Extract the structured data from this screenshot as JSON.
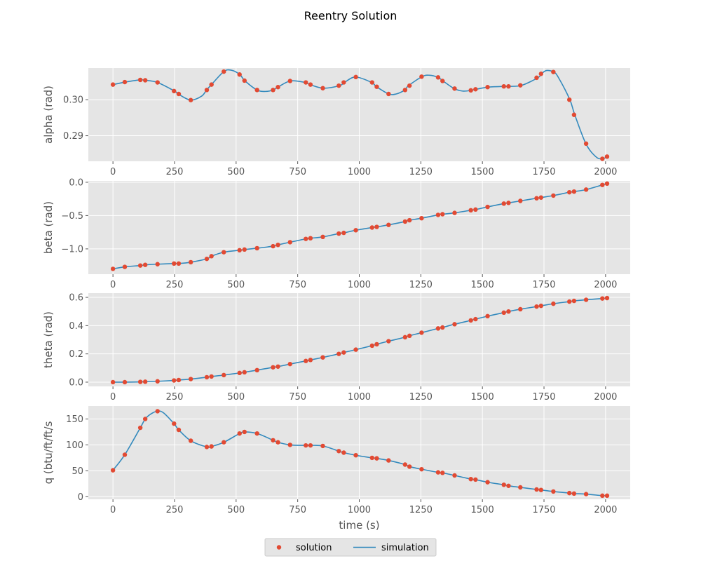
{
  "title": "Reentry Solution",
  "colors": {
    "solution": "#E24A33",
    "simulation": "#348ABD",
    "panel_bg": "#E5E5E5",
    "grid": "#FFFFFF"
  },
  "legend": {
    "placement": "lower-center",
    "entries": [
      "solution",
      "simulation"
    ]
  },
  "chart_data": [
    {
      "type": "line",
      "ylabel": "alpha (rad)",
      "xlabel": "",
      "grid": true,
      "xlim": [
        -100,
        2100
      ],
      "ylim": [
        0.2829,
        0.3088
      ],
      "xticks": [
        0,
        250,
        500,
        750,
        1000,
        1250,
        1500,
        1750,
        2000
      ],
      "xtick_labels": [
        "0",
        "250",
        "500",
        "750",
        "1000",
        "1250",
        "1500",
        "1750",
        "2000"
      ],
      "yticks": [
        0.29,
        0.3
      ],
      "ytick_labels": [
        "0.29",
        "0.30"
      ],
      "series": [
        {
          "name": "simulation",
          "style": "line",
          "x": [
            0,
            50,
            110,
            130,
            180,
            250,
            265,
            315,
            360,
            380,
            400,
            450,
            480,
            515,
            535,
            585,
            620,
            650,
            670,
            720,
            780,
            800,
            855,
            920,
            940,
            985,
            1050,
            1070,
            1120,
            1150,
            1185,
            1200,
            1255,
            1285,
            1320,
            1340,
            1385,
            1420,
            1455,
            1475,
            1525,
            1590,
            1610,
            1660,
            1725,
            1740,
            1760,
            1790,
            1810,
            1855,
            1875,
            1920,
            1960,
            1985,
            2010
          ],
          "y": [
            0.3042,
            0.3049,
            0.3055,
            0.3054,
            0.3048,
            0.3024,
            0.3016,
            0.2999,
            0.301,
            0.3027,
            0.3042,
            0.3078,
            0.3082,
            0.307,
            0.3053,
            0.3027,
            0.3023,
            0.3027,
            0.3035,
            0.3052,
            0.3048,
            0.3042,
            0.3032,
            0.3039,
            0.3048,
            0.3063,
            0.3048,
            0.3036,
            0.3016,
            0.3016,
            0.3027,
            0.3039,
            0.3064,
            0.3068,
            0.3062,
            0.3052,
            0.3031,
            0.3024,
            0.3026,
            0.3029,
            0.3035,
            0.3037,
            0.3037,
            0.304,
            0.3061,
            0.3072,
            0.3081,
            0.3077,
            0.306,
            0.3,
            0.2958,
            0.2878,
            0.2842,
            0.2836,
            0.2842
          ]
        },
        {
          "name": "solution",
          "style": "scatter",
          "x": [
            0,
            48,
            111,
            131,
            181,
            248,
            267,
            316,
            381,
            400,
            450,
            514,
            534,
            585,
            650,
            670,
            719,
            783,
            802,
            852,
            917,
            937,
            986,
            1052,
            1071,
            1119,
            1186,
            1204,
            1253,
            1320,
            1338,
            1387,
            1453,
            1472,
            1521,
            1587,
            1606,
            1654,
            1720,
            1738,
            1788,
            1853,
            1872,
            1921,
            1987,
            2006
          ],
          "y": [
            0.3042,
            0.3049,
            0.3055,
            0.3054,
            0.3048,
            0.3024,
            0.3016,
            0.2999,
            0.3027,
            0.3042,
            0.3078,
            0.307,
            0.3053,
            0.3027,
            0.3027,
            0.3035,
            0.3052,
            0.3048,
            0.3042,
            0.3032,
            0.3039,
            0.3048,
            0.3063,
            0.3048,
            0.3036,
            0.3016,
            0.3027,
            0.3039,
            0.3064,
            0.3062,
            0.3052,
            0.3031,
            0.3026,
            0.3029,
            0.3035,
            0.3037,
            0.3037,
            0.304,
            0.3061,
            0.3072,
            0.3077,
            0.3,
            0.2958,
            0.2878,
            0.2836,
            0.2842
          ]
        }
      ]
    },
    {
      "type": "line",
      "ylabel": "beta (rad)",
      "xlabel": "",
      "grid": true,
      "xlim": [
        -100,
        2100
      ],
      "ylim": [
        -1.38,
        0.02
      ],
      "xticks": [
        0,
        250,
        500,
        750,
        1000,
        1250,
        1500,
        1750,
        2000
      ],
      "xtick_labels": [
        "0",
        "250",
        "500",
        "750",
        "1000",
        "1250",
        "1500",
        "1750",
        "2000"
      ],
      "yticks": [
        -1.0,
        -0.5,
        0.0
      ],
      "ytick_labels": [
        "−1.0",
        "−0.5",
        "0.0"
      ],
      "series": [
        {
          "name": "simulation",
          "style": "line",
          "x": [
            0,
            48,
            111,
            131,
            181,
            248,
            267,
            316,
            381,
            400,
            450,
            514,
            534,
            585,
            650,
            670,
            719,
            783,
            802,
            852,
            917,
            937,
            986,
            1052,
            1071,
            1119,
            1186,
            1204,
            1253,
            1320,
            1338,
            1387,
            1453,
            1472,
            1521,
            1587,
            1606,
            1654,
            1720,
            1738,
            1788,
            1853,
            1872,
            1921,
            1987,
            2006
          ],
          "y": [
            -1.3,
            -1.27,
            -1.25,
            -1.24,
            -1.23,
            -1.22,
            -1.22,
            -1.2,
            -1.15,
            -1.11,
            -1.05,
            -1.02,
            -1.01,
            -0.99,
            -0.96,
            -0.94,
            -0.9,
            -0.85,
            -0.84,
            -0.82,
            -0.77,
            -0.76,
            -0.72,
            -0.68,
            -0.67,
            -0.64,
            -0.59,
            -0.57,
            -0.54,
            -0.49,
            -0.48,
            -0.46,
            -0.42,
            -0.41,
            -0.37,
            -0.32,
            -0.31,
            -0.28,
            -0.24,
            -0.23,
            -0.2,
            -0.15,
            -0.14,
            -0.11,
            -0.04,
            -0.02
          ]
        },
        {
          "name": "solution",
          "style": "scatter",
          "x": [
            0,
            48,
            111,
            131,
            181,
            248,
            267,
            316,
            381,
            400,
            450,
            514,
            534,
            585,
            650,
            670,
            719,
            783,
            802,
            852,
            917,
            937,
            986,
            1052,
            1071,
            1119,
            1186,
            1204,
            1253,
            1320,
            1338,
            1387,
            1453,
            1472,
            1521,
            1587,
            1606,
            1654,
            1720,
            1738,
            1788,
            1853,
            1872,
            1921,
            1987,
            2006
          ],
          "y": [
            -1.3,
            -1.27,
            -1.25,
            -1.24,
            -1.23,
            -1.22,
            -1.22,
            -1.2,
            -1.15,
            -1.11,
            -1.05,
            -1.02,
            -1.01,
            -0.99,
            -0.96,
            -0.94,
            -0.9,
            -0.85,
            -0.84,
            -0.82,
            -0.77,
            -0.76,
            -0.72,
            -0.68,
            -0.67,
            -0.64,
            -0.59,
            -0.57,
            -0.54,
            -0.49,
            -0.48,
            -0.46,
            -0.42,
            -0.41,
            -0.37,
            -0.32,
            -0.31,
            -0.28,
            -0.24,
            -0.23,
            -0.2,
            -0.15,
            -0.14,
            -0.11,
            -0.04,
            -0.02
          ]
        }
      ]
    },
    {
      "type": "line",
      "ylabel": "theta (rad)",
      "xlabel": "",
      "grid": true,
      "xlim": [
        -100,
        2100
      ],
      "ylim": [
        -0.03,
        0.63
      ],
      "xticks": [
        0,
        250,
        500,
        750,
        1000,
        1250,
        1500,
        1750,
        2000
      ],
      "xtick_labels": [
        "0",
        "250",
        "500",
        "750",
        "1000",
        "1250",
        "1500",
        "1750",
        "2000"
      ],
      "yticks": [
        0.0,
        0.2,
        0.4,
        0.6
      ],
      "ytick_labels": [
        "0.0",
        "0.2",
        "0.4",
        "0.6"
      ],
      "series": [
        {
          "name": "simulation",
          "style": "line",
          "x": [
            0,
            48,
            111,
            131,
            181,
            248,
            267,
            316,
            381,
            400,
            450,
            514,
            534,
            585,
            650,
            670,
            719,
            783,
            802,
            852,
            917,
            937,
            986,
            1052,
            1071,
            1119,
            1186,
            1204,
            1253,
            1320,
            1338,
            1387,
            1453,
            1472,
            1521,
            1587,
            1606,
            1654,
            1720,
            1738,
            1788,
            1853,
            1872,
            1921,
            1987,
            2006
          ],
          "y": [
            0.0,
            0.0,
            0.002,
            0.003,
            0.006,
            0.012,
            0.015,
            0.022,
            0.035,
            0.04,
            0.05,
            0.065,
            0.07,
            0.085,
            0.105,
            0.11,
            0.128,
            0.15,
            0.157,
            0.175,
            0.2,
            0.21,
            0.23,
            0.258,
            0.268,
            0.29,
            0.318,
            0.328,
            0.35,
            0.38,
            0.387,
            0.41,
            0.437,
            0.446,
            0.467,
            0.492,
            0.5,
            0.516,
            0.535,
            0.54,
            0.555,
            0.57,
            0.575,
            0.583,
            0.592,
            0.595
          ]
        },
        {
          "name": "solution",
          "style": "scatter",
          "x": [
            0,
            48,
            111,
            131,
            181,
            248,
            267,
            316,
            381,
            400,
            450,
            514,
            534,
            585,
            650,
            670,
            719,
            783,
            802,
            852,
            917,
            937,
            986,
            1052,
            1071,
            1119,
            1186,
            1204,
            1253,
            1320,
            1338,
            1387,
            1453,
            1472,
            1521,
            1587,
            1606,
            1654,
            1720,
            1738,
            1788,
            1853,
            1872,
            1921,
            1987,
            2006
          ],
          "y": [
            0.0,
            0.0,
            0.002,
            0.003,
            0.006,
            0.012,
            0.015,
            0.022,
            0.035,
            0.04,
            0.05,
            0.065,
            0.07,
            0.085,
            0.105,
            0.11,
            0.128,
            0.15,
            0.157,
            0.175,
            0.2,
            0.21,
            0.23,
            0.258,
            0.268,
            0.29,
            0.318,
            0.328,
            0.35,
            0.38,
            0.387,
            0.41,
            0.437,
            0.446,
            0.467,
            0.492,
            0.5,
            0.516,
            0.535,
            0.54,
            0.555,
            0.57,
            0.575,
            0.583,
            0.592,
            0.595
          ]
        }
      ]
    },
    {
      "type": "line",
      "ylabel": "q (btu/ft/ft/s",
      "xlabel": "time (s)",
      "grid": true,
      "xlim": [
        -100,
        2100
      ],
      "ylim": [
        -5,
        175
      ],
      "xticks": [
        0,
        250,
        500,
        750,
        1000,
        1250,
        1500,
        1750,
        2000
      ],
      "xtick_labels": [
        "0",
        "250",
        "500",
        "750",
        "1000",
        "1250",
        "1500",
        "1750",
        "2000"
      ],
      "yticks": [
        0,
        50,
        100,
        150
      ],
      "ytick_labels": [
        "0",
        "50",
        "100",
        "150"
      ],
      "series": [
        {
          "name": "simulation",
          "style": "line",
          "x": [
            0,
            48,
            111,
            131,
            155,
            181,
            205,
            248,
            267,
            316,
            381,
            400,
            450,
            514,
            534,
            585,
            650,
            670,
            719,
            783,
            802,
            852,
            917,
            937,
            986,
            1052,
            1071,
            1119,
            1186,
            1204,
            1253,
            1320,
            1338,
            1387,
            1453,
            1472,
            1521,
            1587,
            1606,
            1654,
            1720,
            1738,
            1788,
            1853,
            1872,
            1921,
            1987,
            2006
          ],
          "y": [
            51,
            81,
            133,
            150,
            160,
            165,
            162,
            141,
            129,
            108,
            96,
            97,
            105,
            122,
            125,
            122,
            109,
            105,
            100,
            99,
            99,
            98,
            88,
            85,
            80,
            75,
            74,
            70,
            62,
            58,
            53,
            47,
            46,
            41,
            34,
            33,
            28,
            23,
            21,
            18,
            14,
            13,
            10,
            7,
            6,
            5,
            2,
            2
          ]
        },
        {
          "name": "solution",
          "style": "scatter",
          "x": [
            0,
            48,
            111,
            131,
            181,
            248,
            267,
            316,
            381,
            400,
            450,
            514,
            534,
            585,
            650,
            670,
            719,
            783,
            802,
            852,
            917,
            937,
            986,
            1052,
            1071,
            1119,
            1186,
            1204,
            1253,
            1320,
            1338,
            1387,
            1453,
            1472,
            1521,
            1587,
            1606,
            1654,
            1720,
            1738,
            1788,
            1853,
            1872,
            1921,
            1987,
            2006
          ],
          "y": [
            51,
            81,
            133,
            150,
            165,
            141,
            129,
            108,
            96,
            97,
            105,
            122,
            125,
            122,
            109,
            105,
            100,
            99,
            99,
            98,
            88,
            85,
            80,
            75,
            74,
            70,
            62,
            58,
            53,
            47,
            46,
            41,
            34,
            33,
            28,
            23,
            21,
            18,
            14,
            13,
            10,
            7,
            6,
            5,
            2,
            2
          ]
        }
      ]
    }
  ]
}
